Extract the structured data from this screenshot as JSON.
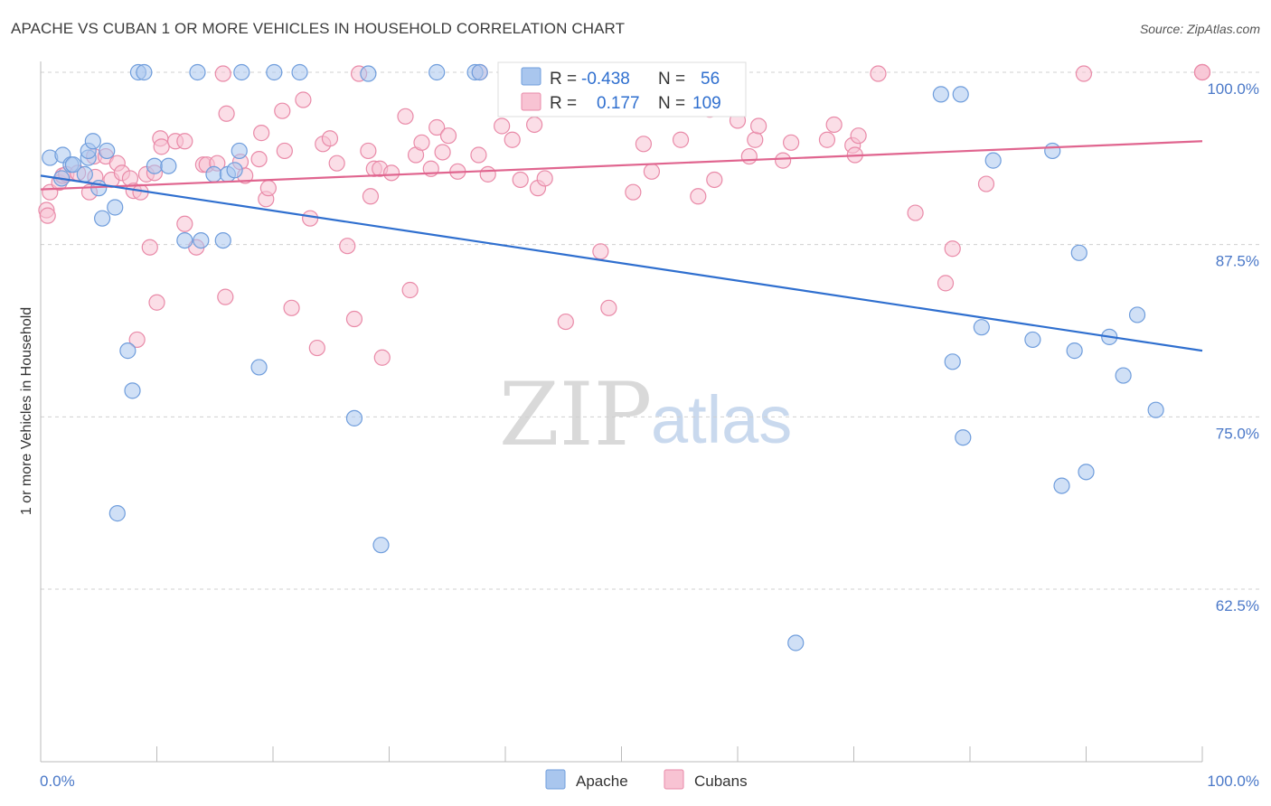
{
  "title": "APACHE VS CUBAN 1 OR MORE VEHICLES IN HOUSEHOLD CORRELATION CHART",
  "source": "Source: ZipAtlas.com",
  "watermark": {
    "zip": "ZIP",
    "atlas": "atlas"
  },
  "colors": {
    "apache_fill": "#a9c6ee",
    "apache_stroke": "#6f9ddc",
    "apache_line": "#2f6fcf",
    "cubans_fill": "#f8c3d3",
    "cubans_stroke": "#e98aa8",
    "cubans_line": "#e0658f",
    "accent_text": "#2f6fcf",
    "grid": "#d0d0d0"
  },
  "stats": {
    "r_label": "R =",
    "n_label": "N =",
    "apache": {
      "r": "-0.438",
      "n": "56"
    },
    "cubans": {
      "r": "0.177",
      "n": "109"
    }
  },
  "chart_data": {
    "type": "scatter",
    "xlabel": "",
    "ylabel": "1 or more Vehicles in Household",
    "xlim": [
      0,
      100
    ],
    "ylim": [
      50.0,
      101.0
    ],
    "x_tick_labels": [
      "0.0%",
      "100.0%"
    ],
    "y_ticks": [
      100.0,
      87.5,
      75.0,
      62.5
    ],
    "y_tick_labels": [
      "100.0%",
      "87.5%",
      "75.0%",
      "62.5%"
    ],
    "grid": true,
    "legend_position": "bottom",
    "series": [
      {
        "name": "Apache",
        "trend": {
          "x": [
            0,
            100
          ],
          "y": [
            92.5,
            79.8
          ]
        },
        "points": [
          [
            0.8,
            93.8
          ],
          [
            1.8,
            92.3
          ],
          [
            1.9,
            94.0
          ],
          [
            2.6,
            93.3
          ],
          [
            2.8,
            93.3
          ],
          [
            3.8,
            92.6
          ],
          [
            4.1,
            93.8
          ],
          [
            4.1,
            94.3
          ],
          [
            4.5,
            95.0
          ],
          [
            5.0,
            91.6
          ],
          [
            5.3,
            89.4
          ],
          [
            5.7,
            94.3
          ],
          [
            6.4,
            90.2
          ],
          [
            6.6,
            68.0
          ],
          [
            7.5,
            79.8
          ],
          [
            7.9,
            76.9
          ],
          [
            8.4,
            100.0
          ],
          [
            8.9,
            100.0
          ],
          [
            9.8,
            93.2
          ],
          [
            11.0,
            93.2
          ],
          [
            12.4,
            87.8
          ],
          [
            13.5,
            100.0
          ],
          [
            13.8,
            87.8
          ],
          [
            14.9,
            92.6
          ],
          [
            15.7,
            87.8
          ],
          [
            16.1,
            92.6
          ],
          [
            16.7,
            92.9
          ],
          [
            17.1,
            94.3
          ],
          [
            17.3,
            100.0
          ],
          [
            18.8,
            78.6
          ],
          [
            20.1,
            100.0
          ],
          [
            22.3,
            100.0
          ],
          [
            27.0,
            74.9
          ],
          [
            28.2,
            99.9
          ],
          [
            29.3,
            65.7
          ],
          [
            34.1,
            100.0
          ],
          [
            37.4,
            100.0
          ],
          [
            37.8,
            100.0
          ],
          [
            56.0,
            99.3
          ],
          [
            65.0,
            58.6
          ],
          [
            77.5,
            98.4
          ],
          [
            78.5,
            79.0
          ],
          [
            79.2,
            98.4
          ],
          [
            79.4,
            73.5
          ],
          [
            81.0,
            81.5
          ],
          [
            82.0,
            93.6
          ],
          [
            85.4,
            80.6
          ],
          [
            87.1,
            94.3
          ],
          [
            87.9,
            70.0
          ],
          [
            89.0,
            79.8
          ],
          [
            89.4,
            86.9
          ],
          [
            90.0,
            71.0
          ],
          [
            92.0,
            80.8
          ],
          [
            93.2,
            78.0
          ],
          [
            94.4,
            82.4
          ],
          [
            96.0,
            75.5
          ]
        ]
      },
      {
        "name": "Cubans",
        "trend": {
          "x": [
            0,
            100
          ],
          "y": [
            91.5,
            95.0
          ]
        },
        "points": [
          [
            0.5,
            90.0
          ],
          [
            0.6,
            89.6
          ],
          [
            0.8,
            91.3
          ],
          [
            1.6,
            92.0
          ],
          [
            1.9,
            92.5
          ],
          [
            2.2,
            92.6
          ],
          [
            3.2,
            92.7
          ],
          [
            4.2,
            91.3
          ],
          [
            4.6,
            93.9
          ],
          [
            4.7,
            92.4
          ],
          [
            5.6,
            93.9
          ],
          [
            6.1,
            92.2
          ],
          [
            6.6,
            93.4
          ],
          [
            7.0,
            92.7
          ],
          [
            7.7,
            92.3
          ],
          [
            8.0,
            91.4
          ],
          [
            8.3,
            80.6
          ],
          [
            8.6,
            91.3
          ],
          [
            9.1,
            92.6
          ],
          [
            9.4,
            87.3
          ],
          [
            9.8,
            92.7
          ],
          [
            10.0,
            83.3
          ],
          [
            10.3,
            95.2
          ],
          [
            10.4,
            94.6
          ],
          [
            11.6,
            95.0
          ],
          [
            12.4,
            89.0
          ],
          [
            12.4,
            95.0
          ],
          [
            13.4,
            87.3
          ],
          [
            14.0,
            93.3
          ],
          [
            14.3,
            93.3
          ],
          [
            15.2,
            93.4
          ],
          [
            15.7,
            99.9
          ],
          [
            15.9,
            83.7
          ],
          [
            16.0,
            97.0
          ],
          [
            17.2,
            93.5
          ],
          [
            17.6,
            92.5
          ],
          [
            18.8,
            93.7
          ],
          [
            19.0,
            95.6
          ],
          [
            19.4,
            90.8
          ],
          [
            19.6,
            91.6
          ],
          [
            20.8,
            97.2
          ],
          [
            21.0,
            94.3
          ],
          [
            21.6,
            82.9
          ],
          [
            22.6,
            98.0
          ],
          [
            23.2,
            89.4
          ],
          [
            23.8,
            80.0
          ],
          [
            24.3,
            94.8
          ],
          [
            24.9,
            95.2
          ],
          [
            25.5,
            93.4
          ],
          [
            26.4,
            87.4
          ],
          [
            27.0,
            82.1
          ],
          [
            27.4,
            99.9
          ],
          [
            28.2,
            94.3
          ],
          [
            28.4,
            91.0
          ],
          [
            28.7,
            93.0
          ],
          [
            29.2,
            93.0
          ],
          [
            29.4,
            79.3
          ],
          [
            30.2,
            92.7
          ],
          [
            31.4,
            96.8
          ],
          [
            31.8,
            84.2
          ],
          [
            32.3,
            94.0
          ],
          [
            32.8,
            94.9
          ],
          [
            33.6,
            93.0
          ],
          [
            34.1,
            96.0
          ],
          [
            34.6,
            94.2
          ],
          [
            35.1,
            95.4
          ],
          [
            35.9,
            92.8
          ],
          [
            37.7,
            94.0
          ],
          [
            37.8,
            100.0
          ],
          [
            38.5,
            92.6
          ],
          [
            39.7,
            96.1
          ],
          [
            40.6,
            95.1
          ],
          [
            40.8,
            100.0
          ],
          [
            41.3,
            92.2
          ],
          [
            42.5,
            96.2
          ],
          [
            42.8,
            91.6
          ],
          [
            43.4,
            92.3
          ],
          [
            45.2,
            81.9
          ],
          [
            45.8,
            99.8
          ],
          [
            48.2,
            87.0
          ],
          [
            48.9,
            82.9
          ],
          [
            51.0,
            91.3
          ],
          [
            51.9,
            94.8
          ],
          [
            52.6,
            92.8
          ],
          [
            54.0,
            99.0
          ],
          [
            55.1,
            95.1
          ],
          [
            56.6,
            91.0
          ],
          [
            57.6,
            97.3
          ],
          [
            58.0,
            92.2
          ],
          [
            60.0,
            96.5
          ],
          [
            61.0,
            93.9
          ],
          [
            61.5,
            95.1
          ],
          [
            61.8,
            96.1
          ],
          [
            63.9,
            93.6
          ],
          [
            64.6,
            94.9
          ],
          [
            67.7,
            95.1
          ],
          [
            68.3,
            96.2
          ],
          [
            69.9,
            94.7
          ],
          [
            70.1,
            94.0
          ],
          [
            70.4,
            95.4
          ],
          [
            72.1,
            99.9
          ],
          [
            75.3,
            89.8
          ],
          [
            77.9,
            84.7
          ],
          [
            78.5,
            87.2
          ],
          [
            81.4,
            91.9
          ],
          [
            89.8,
            99.9
          ],
          [
            100.0,
            100.0
          ],
          [
            100.0,
            100.0
          ],
          [
            100.0,
            100.0
          ]
        ]
      }
    ]
  }
}
